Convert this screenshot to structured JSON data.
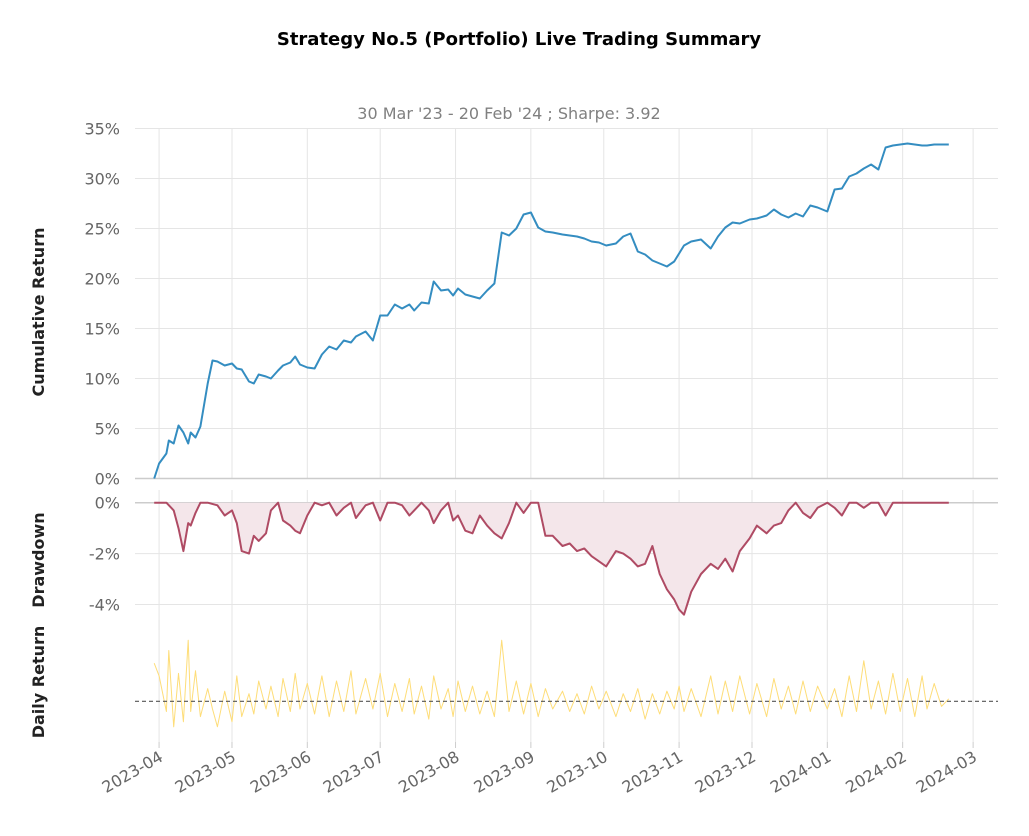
{
  "title": "Strategy No.5 (Portfolio) Live Trading Summary",
  "subtitle": "30 Mar '23 - 20 Feb '24 ;  Sharpe: 3.92",
  "colors": {
    "cumulative": "#348dc1",
    "drawdown": "#af4b64",
    "drawdown_fill": "#f4e6ea",
    "daily": "#fedd78",
    "grid": "#e5e5e5",
    "zero": "#cccccc",
    "dashed": "#555555"
  },
  "chart_data": [
    {
      "type": "line",
      "ylabel": "Cumulative Return",
      "ylim": [
        0,
        35
      ],
      "yticks": [
        0,
        5,
        10,
        15,
        20,
        25,
        30,
        35
      ],
      "ytick_labels": [
        "0%",
        "5%",
        "10%",
        "15%",
        "20%",
        "25%",
        "30%",
        "35%"
      ],
      "grid": true,
      "series": [
        {
          "x": [
            "2023-03-30",
            "2023-04-01",
            "2023-04-04",
            "2023-04-05",
            "2023-04-07",
            "2023-04-09",
            "2023-04-11",
            "2023-04-13",
            "2023-04-14",
            "2023-04-16",
            "2023-04-18",
            "2023-04-21",
            "2023-04-23",
            "2023-04-25",
            "2023-04-28",
            "2023-05-01",
            "2023-05-03",
            "2023-05-05",
            "2023-05-08",
            "2023-05-10",
            "2023-05-12",
            "2023-05-15",
            "2023-05-17",
            "2023-05-20",
            "2023-05-22",
            "2023-05-25",
            "2023-05-27",
            "2023-05-29",
            "2023-06-01",
            "2023-06-04",
            "2023-06-07",
            "2023-06-10",
            "2023-06-13",
            "2023-06-16",
            "2023-06-19",
            "2023-06-21",
            "2023-06-25",
            "2023-06-28",
            "2023-07-01",
            "2023-07-04",
            "2023-07-07",
            "2023-07-10",
            "2023-07-13",
            "2023-07-15",
            "2023-07-18",
            "2023-07-21",
            "2023-07-23",
            "2023-07-26",
            "2023-07-29",
            "2023-07-31",
            "2023-08-02",
            "2023-08-05",
            "2023-08-08",
            "2023-08-11",
            "2023-08-14",
            "2023-08-17",
            "2023-08-20",
            "2023-08-23",
            "2023-08-26",
            "2023-08-29",
            "2023-09-01",
            "2023-09-04",
            "2023-09-07",
            "2023-09-10",
            "2023-09-14",
            "2023-09-17",
            "2023-09-20",
            "2023-09-23",
            "2023-09-26",
            "2023-09-29",
            "2023-10-02",
            "2023-10-06",
            "2023-10-09",
            "2023-10-12",
            "2023-10-15",
            "2023-10-18",
            "2023-10-21",
            "2023-10-24",
            "2023-10-27",
            "2023-10-30",
            "2023-11-01",
            "2023-11-03",
            "2023-11-06",
            "2023-11-10",
            "2023-11-14",
            "2023-11-17",
            "2023-11-20",
            "2023-11-23",
            "2023-11-26",
            "2023-11-30",
            "2023-12-03",
            "2023-12-07",
            "2023-12-10",
            "2023-12-13",
            "2023-12-16",
            "2023-12-19",
            "2023-12-22",
            "2023-12-25",
            "2023-12-28",
            "2024-01-01",
            "2024-01-04",
            "2024-01-07",
            "2024-01-10",
            "2024-01-13",
            "2024-01-16",
            "2024-01-19",
            "2024-01-22",
            "2024-01-25",
            "2024-01-28",
            "2024-01-31",
            "2024-02-03",
            "2024-02-06",
            "2024-02-09",
            "2024-02-11",
            "2024-02-14",
            "2024-02-17",
            "2024-02-20"
          ],
          "y": [
            0.0,
            1.5,
            2.5,
            3.8,
            3.5,
            5.3,
            4.6,
            3.5,
            4.6,
            4.1,
            5.2,
            9.5,
            11.8,
            11.7,
            11.3,
            11.5,
            11.0,
            10.9,
            9.7,
            9.5,
            10.4,
            10.2,
            10.0,
            10.8,
            11.3,
            11.6,
            12.2,
            11.4,
            11.1,
            11.0,
            12.4,
            13.2,
            12.9,
            13.8,
            13.6,
            14.2,
            14.7,
            13.8,
            16.3,
            16.3,
            17.4,
            17.0,
            17.4,
            16.8,
            17.6,
            17.5,
            19.7,
            18.8,
            18.9,
            18.3,
            19.0,
            18.4,
            18.2,
            18.0,
            18.8,
            19.5,
            24.6,
            24.3,
            25.0,
            26.4,
            26.6,
            25.1,
            24.7,
            24.6,
            24.4,
            24.3,
            24.2,
            24.0,
            23.7,
            23.6,
            23.3,
            23.5,
            24.2,
            24.5,
            22.7,
            22.4,
            21.8,
            21.5,
            21.2,
            21.7,
            22.5,
            23.3,
            23.7,
            23.9,
            23.0,
            24.2,
            25.1,
            25.6,
            25.5,
            25.9,
            26.0,
            26.3,
            26.9,
            26.4,
            26.1,
            26.5,
            26.2,
            27.3,
            27.1,
            26.7,
            28.9,
            29.0,
            30.2,
            30.5,
            31.0,
            31.4,
            30.9,
            33.1,
            33.3,
            33.4,
            33.5,
            33.4,
            33.3,
            33.3,
            33.4,
            33.4,
            33.4
          ]
        }
      ]
    },
    {
      "type": "area",
      "ylabel": "Drawdown",
      "ylim": [
        -5,
        0.5
      ],
      "yticks": [
        0,
        -2,
        -4
      ],
      "ytick_labels": [
        "0%",
        "-2%",
        "-4%"
      ],
      "grid": true,
      "series": [
        {
          "x": [
            "2023-03-30",
            "2023-04-04",
            "2023-04-07",
            "2023-04-09",
            "2023-04-11",
            "2023-04-13",
            "2023-04-14",
            "2023-04-16",
            "2023-04-18",
            "2023-04-21",
            "2023-04-25",
            "2023-04-28",
            "2023-05-01",
            "2023-05-03",
            "2023-05-05",
            "2023-05-08",
            "2023-05-10",
            "2023-05-12",
            "2023-05-15",
            "2023-05-17",
            "2023-05-20",
            "2023-05-22",
            "2023-05-25",
            "2023-05-27",
            "2023-05-29",
            "2023-06-01",
            "2023-06-04",
            "2023-06-07",
            "2023-06-10",
            "2023-06-13",
            "2023-06-16",
            "2023-06-19",
            "2023-06-21",
            "2023-06-25",
            "2023-06-28",
            "2023-07-01",
            "2023-07-04",
            "2023-07-07",
            "2023-07-10",
            "2023-07-13",
            "2023-07-15",
            "2023-07-18",
            "2023-07-21",
            "2023-07-23",
            "2023-07-26",
            "2023-07-29",
            "2023-07-31",
            "2023-08-02",
            "2023-08-05",
            "2023-08-08",
            "2023-08-11",
            "2023-08-14",
            "2023-08-17",
            "2023-08-20",
            "2023-08-23",
            "2023-08-26",
            "2023-08-29",
            "2023-09-01",
            "2023-09-04",
            "2023-09-07",
            "2023-09-10",
            "2023-09-14",
            "2023-09-17",
            "2023-09-20",
            "2023-09-23",
            "2023-09-26",
            "2023-09-29",
            "2023-10-02",
            "2023-10-06",
            "2023-10-09",
            "2023-10-12",
            "2023-10-15",
            "2023-10-18",
            "2023-10-21",
            "2023-10-24",
            "2023-10-27",
            "2023-10-30",
            "2023-11-01",
            "2023-11-03",
            "2023-11-06",
            "2023-11-10",
            "2023-11-14",
            "2023-11-17",
            "2023-11-20",
            "2023-11-23",
            "2023-11-26",
            "2023-11-30",
            "2023-12-03",
            "2023-12-07",
            "2023-12-10",
            "2023-12-13",
            "2023-12-16",
            "2023-12-19",
            "2023-12-22",
            "2023-12-25",
            "2023-12-28",
            "2024-01-01",
            "2024-01-04",
            "2024-01-07",
            "2024-01-10",
            "2024-01-13",
            "2024-01-16",
            "2024-01-19",
            "2024-01-22",
            "2024-01-25",
            "2024-01-28",
            "2024-01-31",
            "2024-02-03",
            "2024-02-06",
            "2024-02-09",
            "2024-02-11",
            "2024-02-14",
            "2024-02-17",
            "2024-02-20"
          ],
          "y": [
            0.0,
            0.0,
            -0.3,
            -1.0,
            -1.9,
            -0.8,
            -0.9,
            -0.4,
            0.0,
            0.0,
            -0.1,
            -0.5,
            -0.3,
            -0.8,
            -1.9,
            -2.0,
            -1.3,
            -1.5,
            -1.2,
            -0.3,
            0.0,
            -0.7,
            -0.9,
            -1.1,
            -1.2,
            -0.5,
            0.0,
            -0.1,
            0.0,
            -0.5,
            -0.2,
            0.0,
            -0.6,
            -0.1,
            0.0,
            -0.7,
            0.0,
            0.0,
            -0.1,
            -0.5,
            -0.3,
            0.0,
            -0.3,
            -0.8,
            -0.3,
            0.0,
            -0.7,
            -0.5,
            -1.1,
            -1.2,
            -0.5,
            -0.9,
            -1.2,
            -1.4,
            -0.8,
            0.0,
            -0.4,
            0.0,
            0.0,
            -1.3,
            -1.3,
            -1.7,
            -1.6,
            -1.9,
            -1.8,
            -2.1,
            -2.3,
            -2.5,
            -1.9,
            -2.0,
            -2.2,
            -2.5,
            -2.4,
            -1.7,
            -2.8,
            -3.4,
            -3.8,
            -4.2,
            -4.4,
            -3.5,
            -2.8,
            -2.4,
            -2.6,
            -2.2,
            -2.7,
            -1.9,
            -1.4,
            -0.9,
            -1.2,
            -0.9,
            -0.8,
            -0.3,
            0.0,
            -0.4,
            -0.6,
            -0.2,
            0.0,
            -0.2,
            -0.5,
            0.0,
            0.0,
            -0.2,
            0.0,
            0.0,
            -0.5,
            0.0,
            0.0,
            0.0,
            0.0,
            0.0,
            0.0,
            0.0,
            0.0,
            0.0
          ]
        }
      ]
    },
    {
      "type": "line",
      "ylabel": "Daily Return",
      "ylim": [
        -1.6,
        3.2
      ],
      "yticks": [],
      "grid": true,
      "baseline": 0,
      "series": [
        {
          "x": [
            "2023-03-30",
            "2023-04-01",
            "2023-04-04",
            "2023-04-05",
            "2023-04-07",
            "2023-04-09",
            "2023-04-11",
            "2023-04-13",
            "2023-04-14",
            "2023-04-16",
            "2023-04-18",
            "2023-04-21",
            "2023-04-23",
            "2023-04-25",
            "2023-04-28",
            "2023-05-01",
            "2023-05-03",
            "2023-05-05",
            "2023-05-08",
            "2023-05-10",
            "2023-05-12",
            "2023-05-15",
            "2023-05-17",
            "2023-05-20",
            "2023-05-22",
            "2023-05-25",
            "2023-05-27",
            "2023-05-29",
            "2023-06-01",
            "2023-06-04",
            "2023-06-07",
            "2023-06-10",
            "2023-06-13",
            "2023-06-16",
            "2023-06-19",
            "2023-06-21",
            "2023-06-25",
            "2023-06-28",
            "2023-07-01",
            "2023-07-04",
            "2023-07-07",
            "2023-07-10",
            "2023-07-13",
            "2023-07-15",
            "2023-07-18",
            "2023-07-21",
            "2023-07-23",
            "2023-07-26",
            "2023-07-29",
            "2023-07-31",
            "2023-08-02",
            "2023-08-05",
            "2023-08-08",
            "2023-08-11",
            "2023-08-14",
            "2023-08-17",
            "2023-08-20",
            "2023-08-23",
            "2023-08-26",
            "2023-08-29",
            "2023-09-01",
            "2023-09-04",
            "2023-09-07",
            "2023-09-10",
            "2023-09-14",
            "2023-09-17",
            "2023-09-20",
            "2023-09-23",
            "2023-09-26",
            "2023-09-29",
            "2023-10-02",
            "2023-10-06",
            "2023-10-09",
            "2023-10-12",
            "2023-10-15",
            "2023-10-18",
            "2023-10-21",
            "2023-10-24",
            "2023-10-27",
            "2023-10-30",
            "2023-11-01",
            "2023-11-03",
            "2023-11-06",
            "2023-11-10",
            "2023-11-14",
            "2023-11-17",
            "2023-11-20",
            "2023-11-23",
            "2023-11-26",
            "2023-11-30",
            "2023-12-03",
            "2023-12-07",
            "2023-12-10",
            "2023-12-13",
            "2023-12-16",
            "2023-12-19",
            "2023-12-22",
            "2023-12-25",
            "2023-12-28",
            "2024-01-01",
            "2024-01-04",
            "2024-01-07",
            "2024-01-10",
            "2024-01-13",
            "2024-01-16",
            "2024-01-19",
            "2024-01-22",
            "2024-01-25",
            "2024-01-28",
            "2024-01-31",
            "2024-02-03",
            "2024-02-06",
            "2024-02-09",
            "2024-02-11",
            "2024-02-14",
            "2024-02-17",
            "2024-02-20"
          ],
          "y": [
            1.5,
            1.0,
            -0.4,
            2.0,
            -1.0,
            1.1,
            -0.8,
            2.4,
            -0.4,
            1.2,
            -0.6,
            0.5,
            -0.3,
            -1.0,
            0.4,
            -0.8,
            1.0,
            -0.6,
            0.3,
            -0.5,
            0.8,
            -0.3,
            0.6,
            -0.6,
            0.9,
            -0.4,
            1.1,
            -0.3,
            0.7,
            -0.5,
            1.0,
            -0.6,
            0.8,
            -0.4,
            1.2,
            -0.5,
            0.9,
            -0.3,
            1.1,
            -0.6,
            0.7,
            -0.4,
            0.9,
            -0.5,
            0.6,
            -0.7,
            1.0,
            -0.3,
            0.5,
            -0.6,
            0.8,
            -0.4,
            0.6,
            -0.5,
            0.4,
            -0.6,
            2.4,
            -0.4,
            0.8,
            -0.5,
            0.7,
            -0.6,
            0.5,
            -0.3,
            0.4,
            -0.4,
            0.3,
            -0.5,
            0.6,
            -0.3,
            0.4,
            -0.6,
            0.3,
            -0.4,
            0.5,
            -0.7,
            0.3,
            -0.5,
            0.4,
            -0.3,
            0.6,
            -0.4,
            0.5,
            -0.6,
            1.0,
            -0.5,
            0.8,
            -0.4,
            1.0,
            -0.5,
            0.7,
            -0.6,
            0.9,
            -0.3,
            0.6,
            -0.5,
            0.8,
            -0.4,
            0.6,
            -0.3,
            0.5,
            -0.6,
            1.0,
            -0.4,
            1.6,
            -0.3,
            0.8,
            -0.5,
            1.1,
            -0.4,
            0.9,
            -0.6,
            1.0,
            -0.3,
            0.7,
            -0.2,
            0.1
          ]
        }
      ]
    }
  ],
  "xaxis": {
    "ticks": [
      "2023-04-01",
      "2023-05-01",
      "2023-06-01",
      "2023-07-01",
      "2023-08-01",
      "2023-09-01",
      "2023-10-01",
      "2023-11-01",
      "2023-12-01",
      "2024-01-01",
      "2024-02-01",
      "2024-03-01"
    ],
    "tick_labels": [
      "2023-04",
      "2023-05",
      "2023-06",
      "2023-07",
      "2023-08",
      "2023-09",
      "2023-10",
      "2023-11",
      "2023-12",
      "2024-01",
      "2024-02",
      "2024-03"
    ]
  }
}
